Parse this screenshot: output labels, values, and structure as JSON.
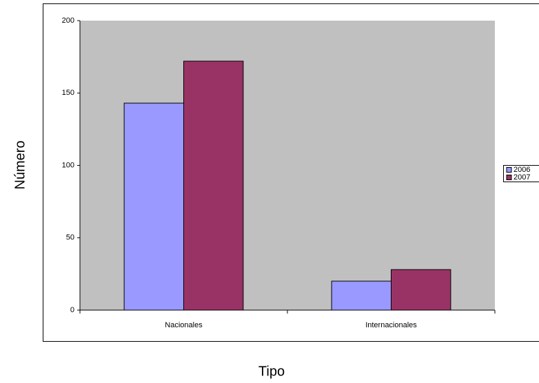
{
  "chart_data": {
    "type": "bar",
    "x_label": "Tipo",
    "y_label": "Número",
    "categories": [
      "Nacionales",
      "Internacionales"
    ],
    "series": [
      {
        "name": "2006",
        "color": "#9999ff",
        "values": [
          143,
          20
        ]
      },
      {
        "name": "2007",
        "color": "#993366",
        "values": [
          172,
          28
        ]
      }
    ],
    "ylim": [
      0,
      200
    ],
    "yticks": [
      0,
      50,
      100,
      150,
      200
    ],
    "grid": false,
    "legend": "right"
  }
}
